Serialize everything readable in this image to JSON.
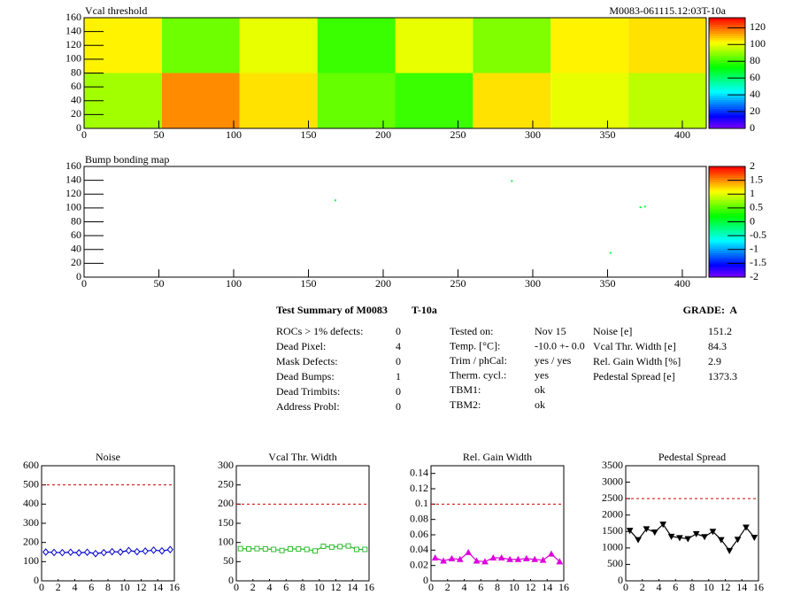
{
  "chart_data": [
    {
      "type": "heatmap",
      "title": "Vcal threshold",
      "subtitle": "M0083-061115.12:03T-10a",
      "xlim": [
        0,
        416
      ],
      "xticks": [
        0,
        50,
        100,
        150,
        200,
        250,
        300,
        350,
        400
      ],
      "ylim": [
        0,
        160
      ],
      "yticks": [
        0,
        20,
        40,
        60,
        80,
        100,
        120,
        140,
        160
      ],
      "xbins": [
        0,
        52,
        104,
        156,
        208,
        260,
        312,
        364,
        416
      ],
      "ybins": [
        0,
        80,
        160
      ],
      "z": [
        [
          92,
          116,
          106,
          85,
          80,
          106,
          100,
          95
        ],
        [
          104,
          86,
          100,
          80,
          100,
          88,
          104,
          106
        ]
      ],
      "zlim": [
        0,
        132
      ],
      "zticks": [
        0,
        20,
        40,
        60,
        80,
        100,
        120
      ]
    },
    {
      "type": "scatter-map",
      "title": "Bump bonding map",
      "xlim": [
        0,
        416
      ],
      "xticks": [
        0,
        50,
        100,
        150,
        200,
        250,
        300,
        350,
        400
      ],
      "ylim": [
        0,
        160
      ],
      "yticks": [
        0,
        20,
        40,
        60,
        80,
        100,
        120,
        140,
        160
      ],
      "x": [
        168,
        286,
        372,
        375,
        352
      ],
      "y": [
        111,
        139,
        101,
        102,
        35
      ],
      "z": [
        0,
        0,
        0,
        0,
        0
      ],
      "zlim": [
        -2,
        2
      ],
      "zticks": [
        -2,
        -1.5,
        -1,
        -0.5,
        0,
        0.5,
        1,
        1.5,
        2
      ]
    },
    {
      "type": "line",
      "title": "Noise",
      "marker": "diamond",
      "color": "#0000cc",
      "xlim": [
        0,
        16
      ],
      "xticks": [
        0,
        2,
        4,
        6,
        8,
        10,
        12,
        14,
        16
      ],
      "ylim": [
        0,
        600
      ],
      "yticks": [
        0,
        100,
        200,
        300,
        400,
        500,
        600
      ],
      "threshold": 500,
      "x": [
        0.5,
        1.5,
        2.5,
        3.5,
        4.5,
        5.5,
        6.5,
        7.5,
        8.5,
        9.5,
        10.5,
        11.5,
        12.5,
        13.5,
        14.5,
        15.5
      ],
      "values": [
        150,
        148,
        147,
        149,
        146,
        149,
        142,
        147,
        152,
        150,
        158,
        152,
        155,
        160,
        156,
        163
      ]
    },
    {
      "type": "line",
      "title": "Vcal Thr. Width",
      "marker": "square",
      "color": "#33bb33",
      "xlim": [
        0,
        16
      ],
      "xticks": [
        0,
        2,
        4,
        6,
        8,
        10,
        12,
        14,
        16
      ],
      "ylim": [
        0,
        300
      ],
      "yticks": [
        0,
        50,
        100,
        150,
        200,
        250,
        300
      ],
      "threshold": 200,
      "x": [
        0.5,
        1.5,
        2.5,
        3.5,
        4.5,
        5.5,
        6.5,
        7.5,
        8.5,
        9.5,
        10.5,
        11.5,
        12.5,
        13.5,
        14.5,
        15.5
      ],
      "values": [
        84,
        83,
        84,
        83,
        82,
        79,
        83,
        83,
        82,
        78,
        90,
        88,
        89,
        91,
        82,
        82
      ]
    },
    {
      "type": "line",
      "title": "Rel. Gain Width",
      "marker": "triangle",
      "color": "#dd00dd",
      "xlim": [
        0,
        16
      ],
      "xticks": [
        0,
        2,
        4,
        6,
        8,
        10,
        12,
        14,
        16
      ],
      "ylim": [
        0,
        0.15
      ],
      "yticks": [
        0,
        0.02,
        0.04,
        0.06,
        0.08,
        0.1,
        0.12,
        0.14
      ],
      "threshold": 0.1,
      "x": [
        0.5,
        1.5,
        2.5,
        3.5,
        4.5,
        5.5,
        6.5,
        7.5,
        8.5,
        9.5,
        10.5,
        11.5,
        12.5,
        13.5,
        14.5,
        15.5
      ],
      "values": [
        0.03,
        0.026,
        0.029,
        0.028,
        0.037,
        0.026,
        0.025,
        0.03,
        0.03,
        0.028,
        0.028,
        0.029,
        0.028,
        0.027,
        0.035,
        0.025
      ]
    },
    {
      "type": "line",
      "title": "Pedestal Spread",
      "marker": "down-triangle",
      "color": "#000000",
      "xlim": [
        0,
        16
      ],
      "xticks": [
        0,
        2,
        4,
        6,
        8,
        10,
        12,
        14,
        16
      ],
      "ylim": [
        0,
        3500
      ],
      "yticks": [
        0,
        500,
        1000,
        1500,
        2000,
        2500,
        3000,
        3500
      ],
      "threshold": 2500,
      "x": [
        0.5,
        1.5,
        2.5,
        3.5,
        4.5,
        5.5,
        6.5,
        7.5,
        8.5,
        9.5,
        10.5,
        11.5,
        12.5,
        13.5,
        14.5,
        15.5
      ],
      "values": [
        1530,
        1250,
        1580,
        1480,
        1720,
        1350,
        1310,
        1280,
        1430,
        1340,
        1500,
        1250,
        920,
        1260,
        1630,
        1320
      ]
    }
  ],
  "summary": {
    "title": "Test Summary of M0083",
    "tag": "T-10a",
    "grade": "GRADE:  A",
    "left": [
      [
        "ROCs > 1% defects:",
        "0"
      ],
      [
        "Dead Pixel:",
        "4"
      ],
      [
        "Mask Defects:",
        "0"
      ],
      [
        "Dead Bumps:",
        "1"
      ],
      [
        "Dead Trimbits:",
        "0"
      ],
      [
        "Address Probl:",
        "0"
      ]
    ],
    "middle": [
      [
        "Tested on:",
        "Nov 15"
      ],
      [
        "Temp. [°C]:",
        "-10.0 +- 0.0"
      ],
      [
        "Trim / phCal:",
        "yes / yes"
      ],
      [
        "Therm. cycl.:",
        "yes"
      ],
      [
        "TBM1:",
        "ok"
      ],
      [
        "TBM2:",
        "ok"
      ]
    ],
    "right": [
      [
        "Noise [e]",
        "151.2"
      ],
      [
        "Vcal Thr. Width [e]",
        "84.3"
      ],
      [
        "Rel. Gain Width [%]",
        "2.9"
      ],
      [
        "Pedestal Spread [e]",
        "1373.3"
      ]
    ]
  }
}
